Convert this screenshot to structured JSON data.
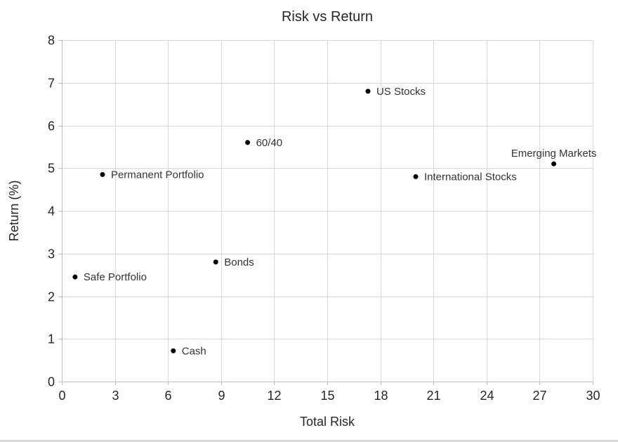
{
  "chart_data": {
    "type": "scatter",
    "title": "Risk vs Return",
    "xlabel": "Total Risk",
    "ylabel": "Return (%)",
    "xlim": [
      0,
      30
    ],
    "xticks": [
      0,
      3,
      6,
      9,
      12,
      15,
      18,
      21,
      24,
      27,
      30
    ],
    "ylim": [
      0,
      8
    ],
    "yticks": [
      0,
      1,
      2,
      3,
      4,
      5,
      6,
      7,
      8
    ],
    "grid": true,
    "legend": "none",
    "points": [
      {
        "label": "Safe Portfolio",
        "x": 0.75,
        "y": 2.45,
        "label_position": "right"
      },
      {
        "label": "Permanent Portfolio",
        "x": 2.3,
        "y": 4.85,
        "label_position": "right"
      },
      {
        "label": "Cash",
        "x": 6.3,
        "y": 0.72,
        "label_position": "right"
      },
      {
        "label": "Bonds",
        "x": 8.7,
        "y": 2.8,
        "label_position": "right"
      },
      {
        "label": "60/40",
        "x": 10.5,
        "y": 5.6,
        "label_position": "right"
      },
      {
        "label": "US Stocks",
        "x": 17.3,
        "y": 6.8,
        "label_position": "right"
      },
      {
        "label": "International Stocks",
        "x": 20.0,
        "y": 4.8,
        "label_position": "right"
      },
      {
        "label": "Emerging Markets",
        "x": 27.8,
        "y": 5.1,
        "label_position": "above"
      }
    ],
    "colors": {
      "point": "#000000",
      "gridline": "#d9d9d9",
      "axis": "#bfbfbf",
      "tick_text": "#262626",
      "label_text": "#333333",
      "title_text": "#262626"
    }
  }
}
